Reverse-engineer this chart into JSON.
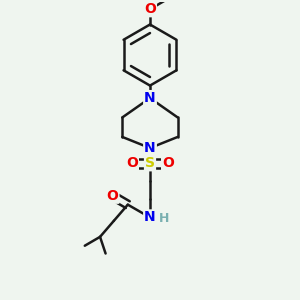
{
  "background_color": "#eff5ef",
  "bond_color": "#1a1a1a",
  "atom_colors": {
    "N": "#0000ee",
    "O": "#ee0000",
    "S": "#cccc00",
    "H": "#7ab0b0",
    "C": "#1a1a1a"
  },
  "bond_width": 1.8,
  "dbo": 0.018,
  "figsize": [
    3.0,
    3.0
  ],
  "dpi": 100,
  "font_size": 10
}
